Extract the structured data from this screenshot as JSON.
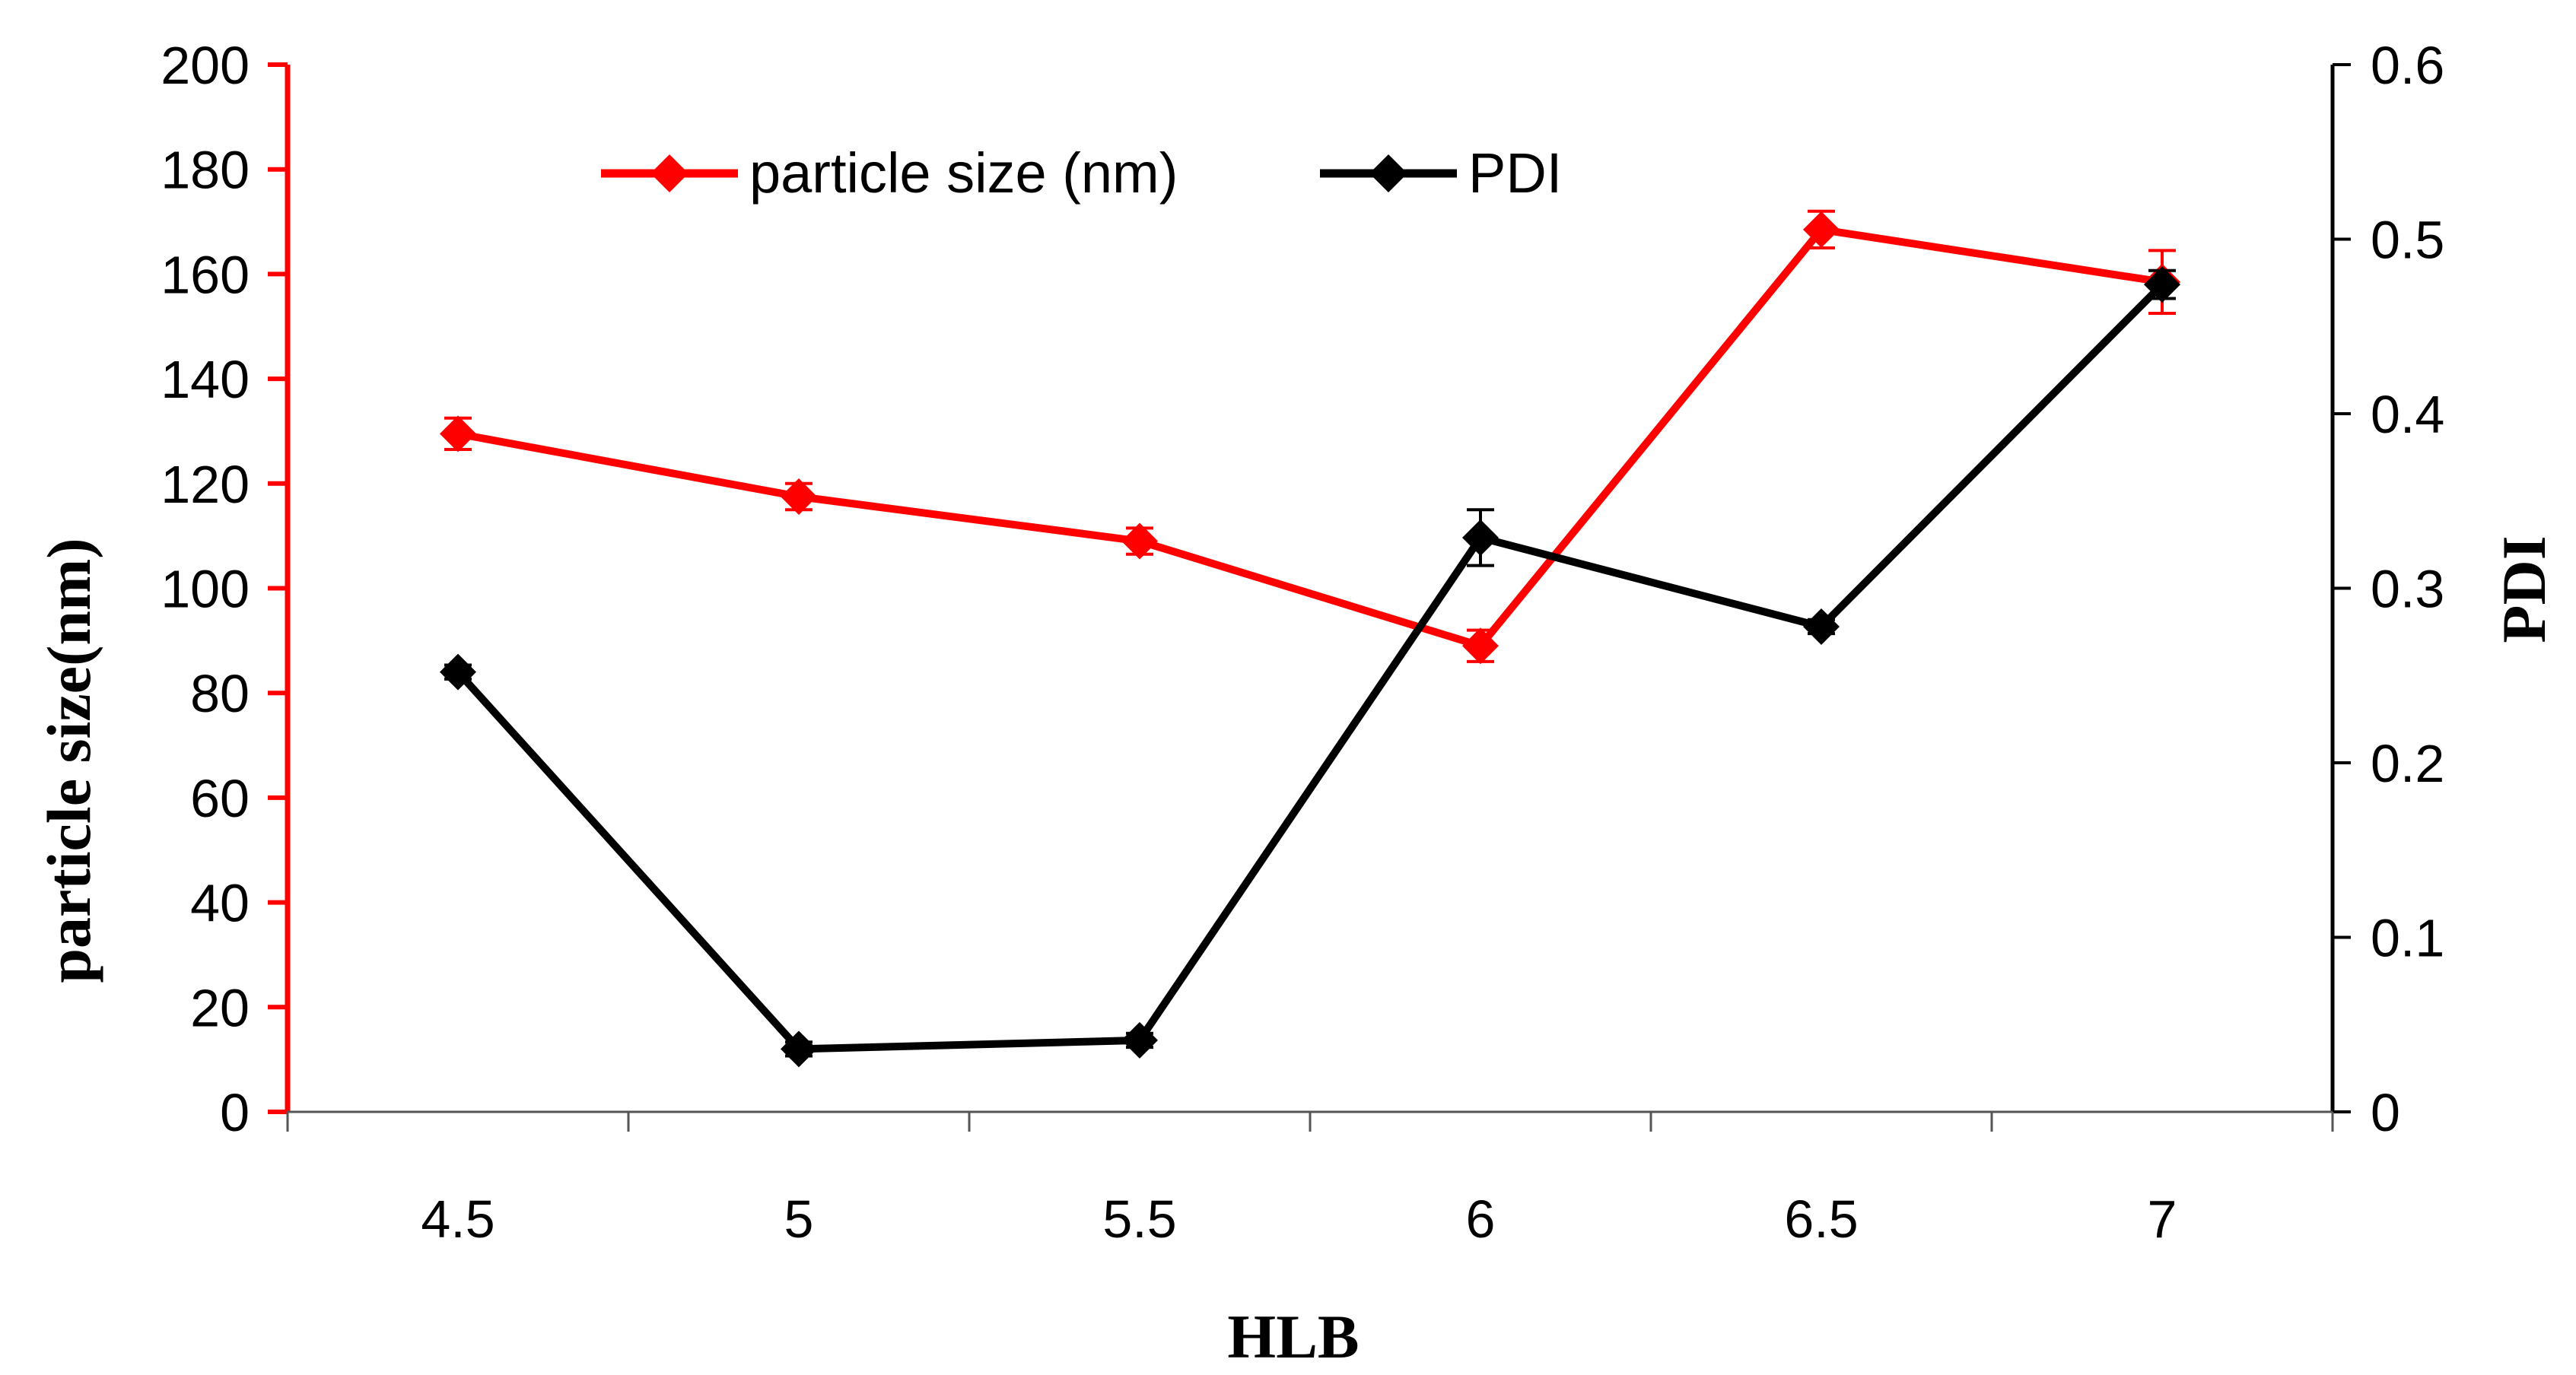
{
  "chart_data": {
    "type": "line",
    "x": [
      4.5,
      5,
      5.5,
      6,
      6.5,
      7
    ],
    "categories": [
      "4.5",
      "5",
      "5.5",
      "6",
      "6.5",
      "7"
    ],
    "xlabel": "HLB",
    "ylabel_left": "particle size(nm)",
    "ylabel_right": "PDI",
    "y_left_lim": [
      0,
      200
    ],
    "y_left_ticks": [
      "0",
      "20",
      "40",
      "60",
      "80",
      "100",
      "120",
      "140",
      "160",
      "180",
      "200"
    ],
    "y_right_lim": [
      0,
      0.6
    ],
    "y_right_ticks": [
      "0",
      "0.1",
      "0.2",
      "0.3",
      "0.4",
      "0.5",
      "0.6"
    ],
    "grid": false,
    "legend_position": "top-center",
    "series": [
      {
        "name": "particle size (nm)",
        "axis": "left",
        "color": "#ff0000",
        "marker": "diamond",
        "values": [
          129.5,
          117.5,
          109,
          89,
          168.5,
          158.5
        ],
        "errors": [
          3,
          2.5,
          2.5,
          3,
          3.5,
          6
        ]
      },
      {
        "name": "PDI",
        "axis": "right",
        "color": "#000000",
        "marker": "diamond",
        "values": [
          0.252,
          0.036,
          0.041,
          0.329,
          0.278,
          0.474
        ],
        "errors": [
          0.004,
          0.004,
          0.004,
          0.016,
          0.004,
          0.008
        ]
      }
    ]
  }
}
